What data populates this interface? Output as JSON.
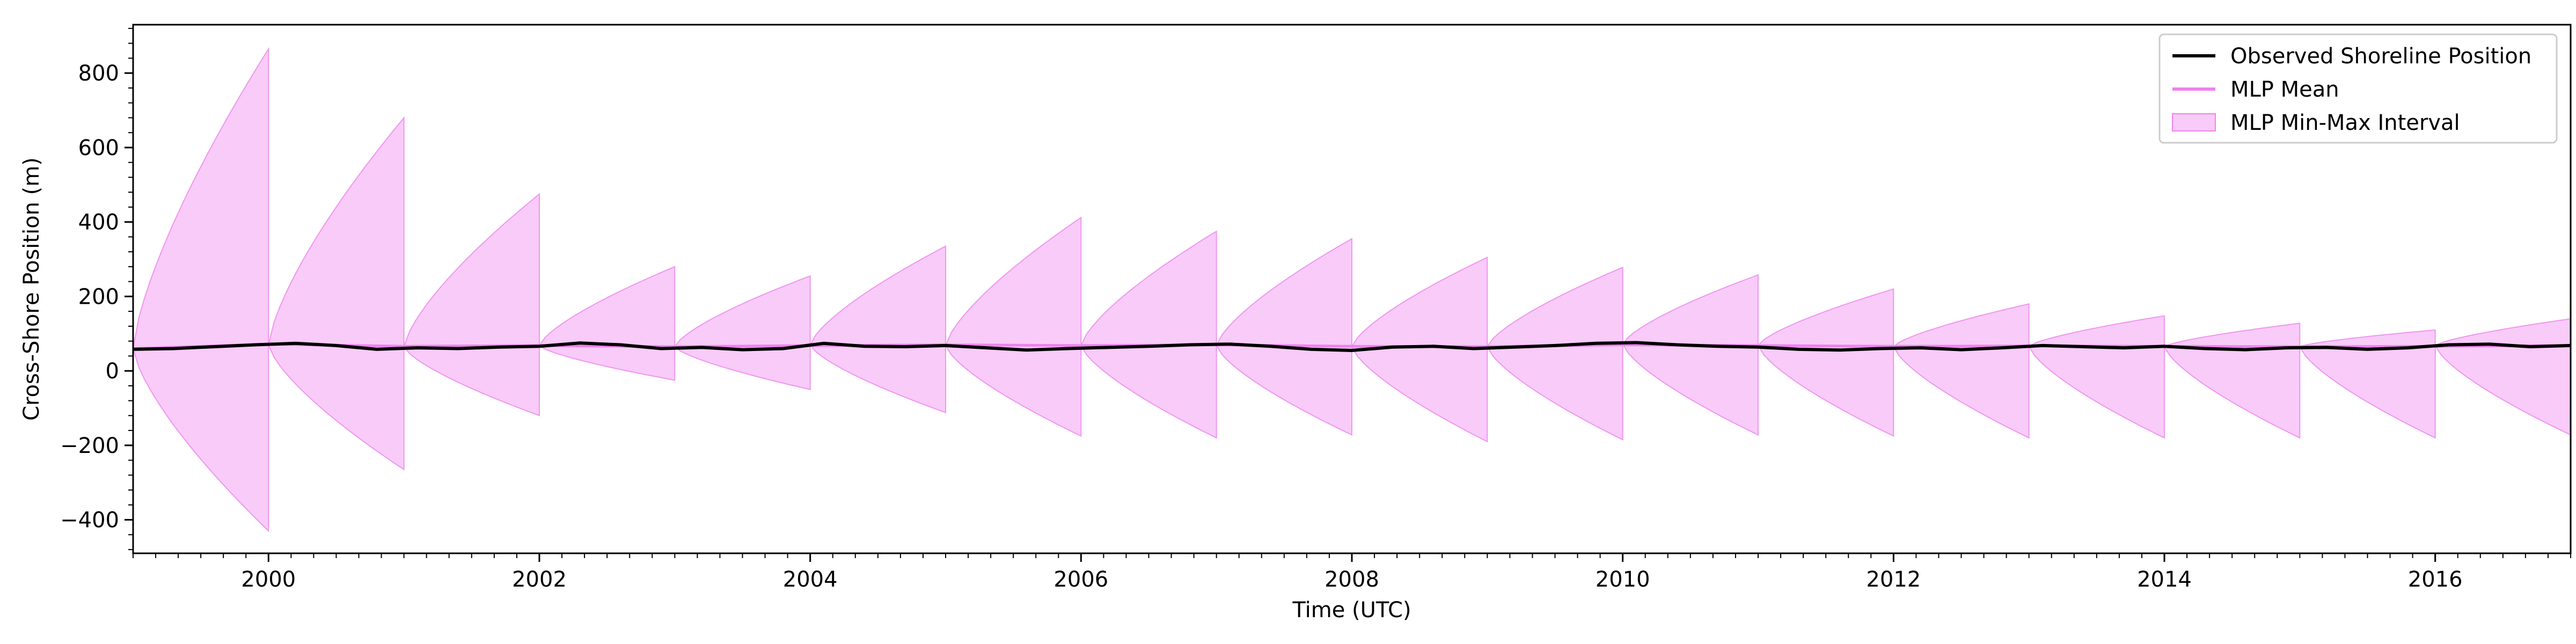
{
  "chart_data": {
    "type": "area",
    "title": "",
    "xlabel": "Time (UTC)",
    "ylabel": "Cross-Shore Position (m)",
    "xlim": [
      1999.0,
      2017.0
    ],
    "ylim": [
      -490,
      930
    ],
    "x_ticks": [
      2000,
      2002,
      2004,
      2006,
      2008,
      2010,
      2012,
      2014,
      2016
    ],
    "x_tick_labels": [
      "2000",
      "2002",
      "2004",
      "2006",
      "2008",
      "2010",
      "2012",
      "2014",
      "2016"
    ],
    "y_ticks": [
      -400,
      -200,
      0,
      200,
      400,
      600,
      800
    ],
    "y_tick_labels": [
      "−400",
      "−200",
      "0",
      "200",
      "400",
      "600",
      "800"
    ],
    "grid": false,
    "legend_position": "top-right",
    "legend": [
      {
        "label": "Observed Shoreline Position",
        "kind": "line",
        "color": "#000000"
      },
      {
        "label": "MLP Mean",
        "kind": "line",
        "color": "#ee82ee"
      },
      {
        "label": "MLP Min-Max Interval",
        "kind": "patch",
        "color": "#ee82ee"
      }
    ],
    "series": [
      {
        "name": "MLP Min-Max Interval",
        "kind": "band",
        "color": "#ee82ee",
        "segments": [
          {
            "start": 1999.0,
            "end": 2000.0,
            "start_value": 60,
            "end_upper": 865,
            "end_lower": -430
          },
          {
            "start": 2000.0,
            "end": 2001.0,
            "start_value": 70,
            "end_upper": 680,
            "end_lower": -265
          },
          {
            "start": 2001.0,
            "end": 2002.0,
            "start_value": 65,
            "end_upper": 475,
            "end_lower": -120
          },
          {
            "start": 2002.0,
            "end": 2003.0,
            "start_value": 68,
            "end_upper": 280,
            "end_lower": -25
          },
          {
            "start": 2003.0,
            "end": 2004.0,
            "start_value": 65,
            "end_upper": 255,
            "end_lower": -50
          },
          {
            "start": 2004.0,
            "end": 2005.0,
            "start_value": 70,
            "end_upper": 335,
            "end_lower": -112
          },
          {
            "start": 2005.0,
            "end": 2006.0,
            "start_value": 68,
            "end_upper": 412,
            "end_lower": -175
          },
          {
            "start": 2006.0,
            "end": 2007.0,
            "start_value": 68,
            "end_upper": 375,
            "end_lower": -180
          },
          {
            "start": 2007.0,
            "end": 2008.0,
            "start_value": 68,
            "end_upper": 355,
            "end_lower": -172
          },
          {
            "start": 2008.0,
            "end": 2009.0,
            "start_value": 65,
            "end_upper": 305,
            "end_lower": -190
          },
          {
            "start": 2009.0,
            "end": 2010.0,
            "start_value": 65,
            "end_upper": 278,
            "end_lower": -185
          },
          {
            "start": 2010.0,
            "end": 2011.0,
            "start_value": 72,
            "end_upper": 258,
            "end_lower": -172
          },
          {
            "start": 2011.0,
            "end": 2012.0,
            "start_value": 68,
            "end_upper": 220,
            "end_lower": -175
          },
          {
            "start": 2012.0,
            "end": 2013.0,
            "start_value": 65,
            "end_upper": 180,
            "end_lower": -180
          },
          {
            "start": 2013.0,
            "end": 2014.0,
            "start_value": 66,
            "end_upper": 148,
            "end_lower": -180
          },
          {
            "start": 2014.0,
            "end": 2015.0,
            "start_value": 65,
            "end_upper": 128,
            "end_lower": -180
          },
          {
            "start": 2015.0,
            "end": 2016.0,
            "start_value": 65,
            "end_upper": 110,
            "end_lower": -180
          },
          {
            "start": 2016.0,
            "end": 2017.0,
            "start_value": 68,
            "end_upper": 140,
            "end_lower": -172
          }
        ]
      },
      {
        "name": "MLP Mean",
        "kind": "line",
        "color": "#ee82ee",
        "x": [
          1999.0,
          2000.0,
          2001.0,
          2002.0,
          2003.0,
          2004.0,
          2005.0,
          2006.0,
          2007.0,
          2008.0,
          2009.0,
          2010.0,
          2011.0,
          2012.0,
          2013.0,
          2014.0,
          2015.0,
          2016.0,
          2017.0
        ],
        "y": [
          60,
          72,
          66,
          68,
          65,
          68,
          70,
          68,
          70,
          66,
          65,
          70,
          68,
          66,
          67,
          66,
          65,
          66,
          68
        ]
      },
      {
        "name": "Observed Shoreline Position",
        "kind": "line",
        "color": "#000000",
        "x": [
          1999.0,
          1999.3,
          1999.6,
          1999.9,
          2000.2,
          2000.5,
          2000.8,
          2001.1,
          2001.4,
          2001.7,
          2002.0,
          2002.3,
          2002.6,
          2002.9,
          2003.2,
          2003.5,
          2003.8,
          2004.1,
          2004.4,
          2004.7,
          2005.0,
          2005.3,
          2005.6,
          2005.9,
          2006.2,
          2006.5,
          2006.8,
          2007.1,
          2007.4,
          2007.7,
          2008.0,
          2008.3,
          2008.6,
          2008.9,
          2009.2,
          2009.5,
          2009.8,
          2010.1,
          2010.4,
          2010.7,
          2011.0,
          2011.3,
          2011.6,
          2011.9,
          2012.2,
          2012.5,
          2012.8,
          2013.1,
          2013.4,
          2013.7,
          2014.0,
          2014.3,
          2014.6,
          2014.9,
          2015.2,
          2015.5,
          2015.8,
          2016.1,
          2016.4,
          2016.7,
          2017.0
        ],
        "y": [
          58,
          60,
          65,
          70,
          74,
          68,
          58,
          62,
          60,
          64,
          66,
          75,
          70,
          60,
          63,
          57,
          60,
          74,
          66,
          65,
          68,
          62,
          56,
          60,
          63,
          66,
          70,
          72,
          66,
          58,
          55,
          64,
          66,
          60,
          64,
          68,
          74,
          76,
          70,
          66,
          64,
          58,
          56,
          60,
          62,
          57,
          62,
          68,
          65,
          62,
          66,
          60,
          57,
          62,
          63,
          58,
          62,
          70,
          72,
          65,
          68
        ]
      }
    ]
  }
}
